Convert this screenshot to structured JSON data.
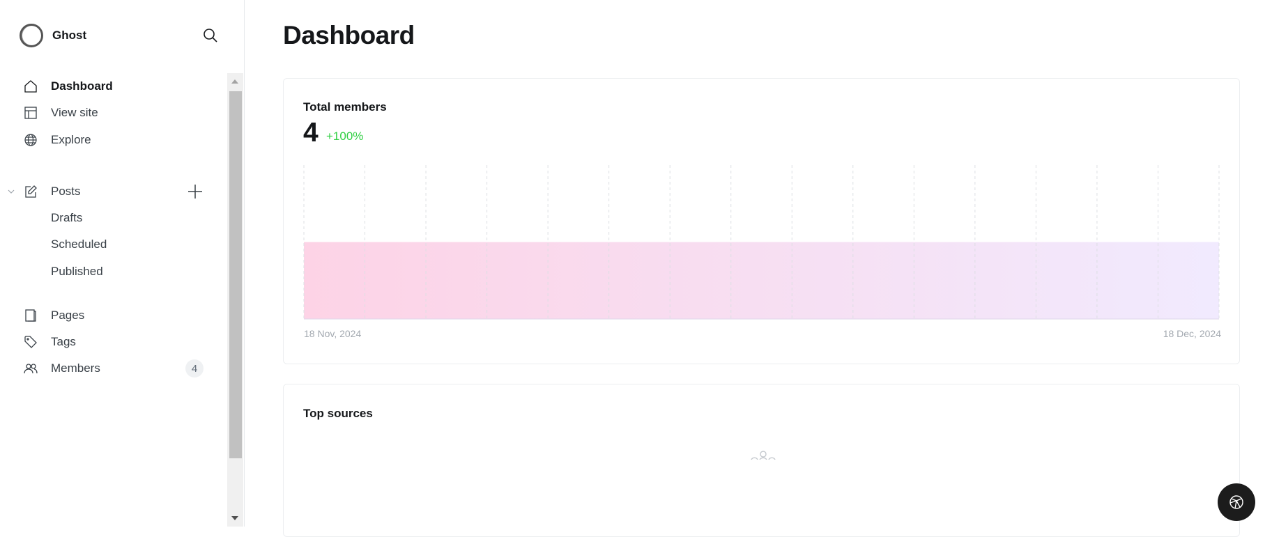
{
  "sidebar": {
    "brand": "Ghost",
    "items": [
      {
        "label": "Dashboard",
        "icon": "home-icon"
      },
      {
        "label": "View site",
        "icon": "layout-icon"
      },
      {
        "label": "Explore",
        "icon": "globe-icon"
      },
      {
        "label": "Posts",
        "icon": "edit-icon"
      },
      {
        "label": "Drafts"
      },
      {
        "label": "Scheduled"
      },
      {
        "label": "Published"
      },
      {
        "label": "Pages",
        "icon": "pages-icon"
      },
      {
        "label": "Tags",
        "icon": "tag-icon"
      },
      {
        "label": "Members",
        "icon": "members-icon",
        "badge": "4"
      }
    ]
  },
  "main": {
    "title": "Dashboard",
    "total_members": {
      "title": "Total members",
      "value": "4",
      "delta": "+100%"
    },
    "top_sources": {
      "title": "Top sources"
    }
  },
  "colors": {
    "line_start": "#e2367f",
    "line_end": "#8e42ee",
    "delta": "#30cf43"
  },
  "chart_data": {
    "type": "area",
    "x_start": "18 Nov, 2024",
    "x_end": "18 Dec, 2024",
    "values": [
      4,
      4,
      4,
      4,
      4,
      4,
      4,
      4,
      4,
      4,
      4,
      4,
      4,
      4,
      4,
      4
    ],
    "ylim": [
      0,
      8
    ],
    "grid": "vertical dashed"
  }
}
